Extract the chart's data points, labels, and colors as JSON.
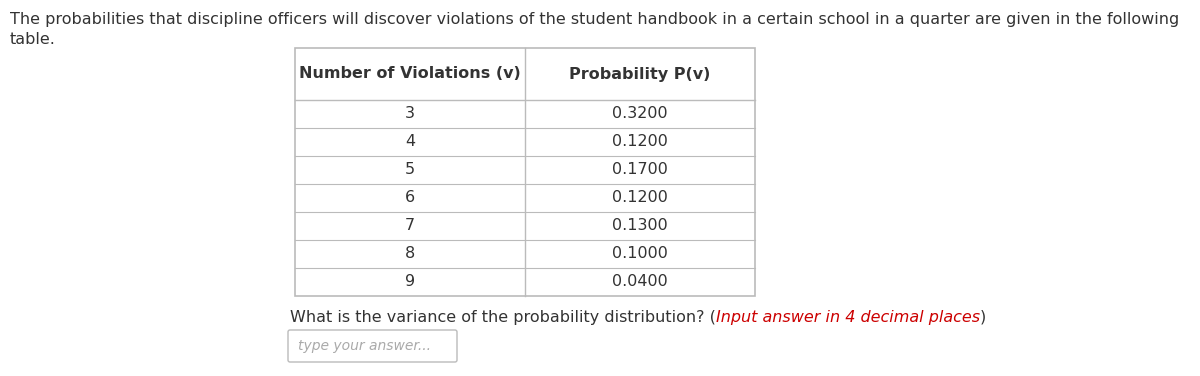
{
  "intro_text_line1": "The probabilities that discipline officers will discover violations of the student handbook in a certain school in a quarter are given in the following",
  "intro_text_line2": "table.",
  "col1_header": "Number of Violations (v)",
  "col2_header": "Probability P(v)",
  "violations": [
    "3",
    "4",
    "5",
    "6",
    "7",
    "8",
    "9"
  ],
  "probabilities": [
    "0.3200",
    "0.1200",
    "0.1700",
    "0.1200",
    "0.1300",
    "0.1000",
    "0.0400"
  ],
  "question_text_plain": "What is the variance of the probability distribution? (",
  "question_text_italic": "Input answer in 4 decimal places",
  "question_text_end": ")",
  "input_placeholder": "type your answer...",
  "background_color": "#ffffff",
  "text_color": "#333333",
  "question_color_plain": "#333333",
  "question_color_italic": "#cc0000",
  "table_line_color": "#bbbbbb",
  "header_font_size": 11.5,
  "body_font_size": 11.5,
  "intro_font_size": 11.5,
  "question_font_size": 11.5,
  "input_font_size": 10
}
